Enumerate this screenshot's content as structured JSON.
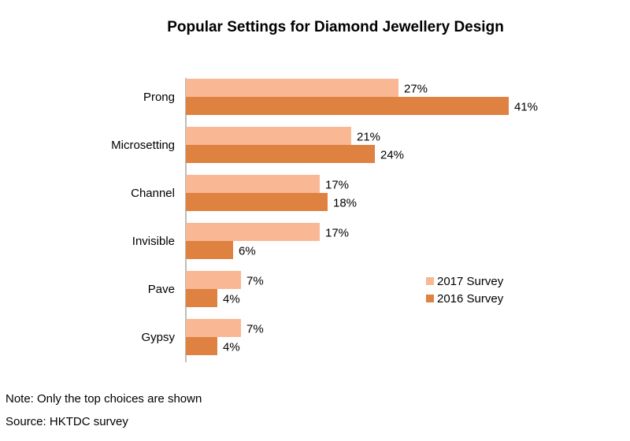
{
  "chart_data": {
    "type": "bar",
    "orientation": "horizontal",
    "title": "Popular Settings for Diamond Jewellery Design",
    "xlabel": "",
    "ylabel": "",
    "xlim": [
      0,
      45
    ],
    "grid": false,
    "legend_position": "right",
    "value_suffix": "%",
    "categories": [
      "Prong",
      "Microsetting",
      "Channel",
      "Invisible",
      "Pave",
      "Gypsy"
    ],
    "series": [
      {
        "name": "2017 Survey",
        "color": "#f9b794",
        "values": [
          27,
          21,
          17,
          17,
          7,
          7
        ]
      },
      {
        "name": "2016 Survey",
        "color": "#de8141",
        "values": [
          41,
          24,
          18,
          6,
          4,
          4
        ]
      }
    ]
  },
  "notes": {
    "note": "Note: Only the top choices are shown",
    "source": "Source: HKTDC survey"
  }
}
